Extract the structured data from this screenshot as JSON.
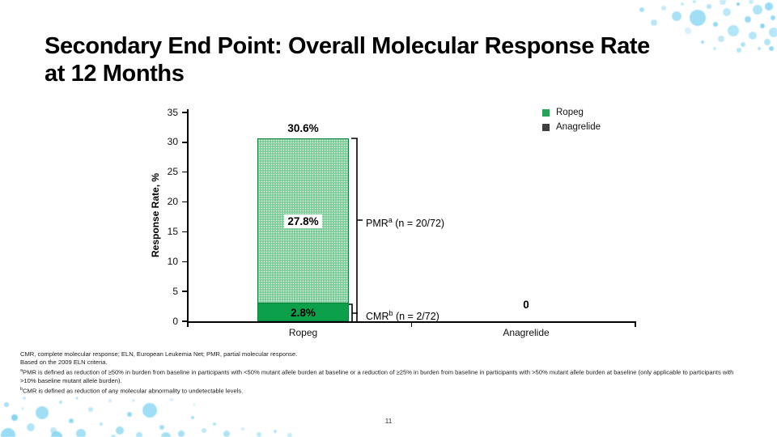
{
  "slide": {
    "title_line1": "Secondary End Point: Overall Molecular Response Rate",
    "title_line2": "at 12 Months",
    "page_number": "11"
  },
  "chart_data": {
    "type": "bar",
    "stacked": true,
    "title": "",
    "xlabel": "",
    "ylabel": "Response Rate, %",
    "ylim": [
      0,
      35
    ],
    "yticks": [
      0,
      5,
      10,
      15,
      20,
      25,
      30,
      35
    ],
    "categories": [
      "Ropeg",
      "Anagrelide"
    ],
    "series": [
      {
        "name": "CMR",
        "values": [
          2.8,
          0
        ],
        "label": "2.8%",
        "color": "#0ca04a"
      },
      {
        "name": "PMR",
        "values": [
          27.8,
          0
        ],
        "label": "27.8%",
        "color": "#7ccb98"
      }
    ],
    "total_labels": [
      "30.6%",
      "0"
    ],
    "colors": {
      "bar_border": "#0b7e3c",
      "pmr_fill": "#7ccb98",
      "cmr_fill": "#0ca04a"
    },
    "legend_position": "top-right",
    "legend": [
      {
        "label": "Ropeg",
        "color": "#27a457"
      },
      {
        "label": "Anagrelide",
        "color": "#3f3f3f"
      }
    ],
    "annotations": [
      {
        "prefix": "PMR",
        "sup": "a",
        "suffix": " (n = 20/72)"
      },
      {
        "prefix": "CMR",
        "sup": "b",
        "suffix": " (n = 2/72)"
      }
    ]
  },
  "footnotes": [
    {
      "sup": "",
      "text": "CMR, complete molecular response; ELN, European Leukemia Net; PMR, partial molecular response."
    },
    {
      "sup": "",
      "text": "Based on the 2009 ELN criteria."
    },
    {
      "sup": "a",
      "text": "PMR is defined as reduction of ≥50% in burden from baseline in participants with <50% mutant allele burden at baseline or a reduction of ≥25% in burden from baseline in participants with >50% mutant allele burden at baseline (only applicable to participants with >10% baseline mutant allele burden)."
    },
    {
      "sup": "b",
      "text": "CMR is defined as reduction of any molecular abnormality to undetectable levels."
    }
  ]
}
